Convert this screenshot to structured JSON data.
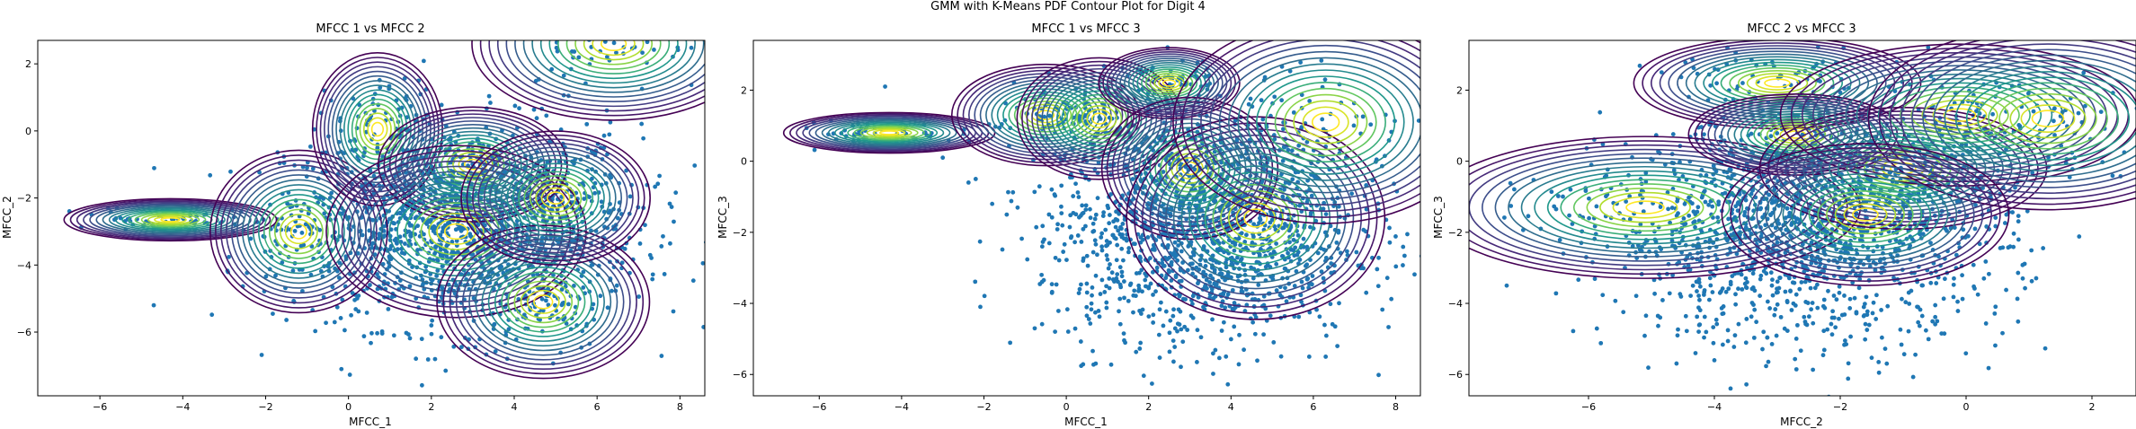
{
  "figure": {
    "suptitle": "GMM with K-Means PDF Contour Plot for Digit 4"
  },
  "chart_data": [
    {
      "type": "scatter",
      "title": "MFCC 1 vs MFCC 2",
      "xlabel": "MFCC_1",
      "ylabel": "MFCC_2",
      "xlim": [
        -7.5,
        8.6
      ],
      "ylim": [
        -7.9,
        2.7
      ],
      "xticks": [
        -6,
        -4,
        -2,
        0,
        2,
        4,
        6,
        8
      ],
      "yticks": [
        -6,
        -4,
        -2,
        0,
        2
      ],
      "grid": false,
      "points_color": "#1f77b4",
      "cloud": {
        "x_range": [
          -2.0,
          7.5
        ],
        "y_range": [
          -6.2,
          0.5
        ]
      },
      "outliers": [
        [
          -4.7,
          -5.2
        ],
        [
          -5.8,
          -2.3
        ],
        [
          -5.5,
          -2.6
        ],
        [
          -6.2,
          -2.5
        ],
        [
          -3.8,
          -2.7
        ],
        [
          1.1,
          -6.1
        ],
        [
          2.0,
          -5.8
        ]
      ],
      "components": [
        {
          "mean": [
            -4.3,
            -2.65
          ],
          "sx": 0.9,
          "sy": 0.22
        },
        {
          "mean": [
            -1.2,
            -3.0
          ],
          "sx": 0.75,
          "sy": 0.85
        },
        {
          "mean": [
            0.7,
            0.05
          ],
          "sx": 0.55,
          "sy": 0.8
        },
        {
          "mean": [
            3.0,
            -1.0
          ],
          "sx": 0.8,
          "sy": 0.6
        },
        {
          "mean": [
            2.6,
            -3.0
          ],
          "sx": 1.1,
          "sy": 0.9
        },
        {
          "mean": [
            4.7,
            -5.1
          ],
          "sx": 0.9,
          "sy": 0.8
        },
        {
          "mean": [
            5.0,
            -2.0
          ],
          "sx": 0.8,
          "sy": 0.7
        },
        {
          "mean": [
            6.4,
            2.6
          ],
          "sx": 1.2,
          "sy": 0.8
        }
      ]
    },
    {
      "type": "scatter",
      "title": "MFCC 1 vs MFCC 3",
      "xlabel": "MFCC_1",
      "ylabel": "MFCC_3",
      "xlim": [
        -7.6,
        8.6
      ],
      "ylim": [
        -6.6,
        3.4
      ],
      "xticks": [
        -6,
        -4,
        -2,
        0,
        2,
        4,
        6,
        8
      ],
      "yticks": [
        -6,
        -4,
        -2,
        0,
        2
      ],
      "grid": false,
      "points_color": "#1f77b4",
      "cloud": {
        "x_range": [
          -1.0,
          7.5
        ],
        "y_range": [
          -5.5,
          1.5
        ]
      },
      "outliers": [
        [
          -4.4,
          2.1
        ],
        [
          -3.0,
          0.1
        ],
        [
          -2.2,
          -0.5
        ],
        [
          -1.8,
          -1.2
        ],
        [
          -0.6,
          -3.2
        ],
        [
          6.3,
          -5.5
        ],
        [
          5.9,
          -5.5
        ]
      ],
      "components": [
        {
          "mean": [
            -4.3,
            0.8
          ],
          "sx": 0.9,
          "sy": 0.2
        },
        {
          "mean": [
            -0.5,
            1.3
          ],
          "sx": 0.8,
          "sy": 0.5
        },
        {
          "mean": [
            0.8,
            1.2
          ],
          "sx": 0.7,
          "sy": 0.6
        },
        {
          "mean": [
            2.5,
            2.2
          ],
          "sx": 0.6,
          "sy": 0.35
        },
        {
          "mean": [
            3.0,
            -0.2
          ],
          "sx": 0.75,
          "sy": 0.7
        },
        {
          "mean": [
            4.6,
            -1.6
          ],
          "sx": 1.1,
          "sy": 1.0
        },
        {
          "mean": [
            6.3,
            1.1
          ],
          "sx": 1.3,
          "sy": 1.0
        }
      ]
    },
    {
      "type": "scatter",
      "title": "MFCC 2 vs MFCC 3",
      "xlabel": "MFCC_2",
      "ylabel": "MFCC_3",
      "xlim": [
        -7.9,
        2.7
      ],
      "ylim": [
        -6.6,
        3.4
      ],
      "xticks": [
        -6,
        -4,
        -2,
        0,
        2
      ],
      "yticks": [
        -6,
        -4,
        -2,
        0,
        2
      ],
      "grid": false,
      "points_color": "#1f77b4",
      "cloud": {
        "x_range": [
          -6.0,
          1.0
        ],
        "y_range": [
          -5.5,
          1.5
        ]
      },
      "outliers": [
        [
          -7.3,
          -3.5
        ],
        [
          -6.4,
          -2.6
        ],
        [
          -5.7,
          -2.4
        ],
        [
          -4.3,
          -5.4
        ],
        [
          -4.0,
          -5.6
        ],
        [
          0.9,
          -3.3
        ],
        [
          0.7,
          -2.4
        ]
      ],
      "components": [
        {
          "mean": [
            -5.1,
            -1.3
          ],
          "sx": 1.2,
          "sy": 0.7
        },
        {
          "mean": [
            -3.0,
            2.2
          ],
          "sx": 0.8,
          "sy": 0.45
        },
        {
          "mean": [
            -2.7,
            0.75
          ],
          "sx": 0.6,
          "sy": 0.4
        },
        {
          "mean": [
            -1.0,
            -0.2
          ],
          "sx": 0.8,
          "sy": 0.6
        },
        {
          "mean": [
            -0.1,
            1.3
          ],
          "sx": 1.0,
          "sy": 0.7
        },
        {
          "mean": [
            1.3,
            1.2
          ],
          "sx": 1.0,
          "sy": 0.9
        },
        {
          "mean": [
            -1.6,
            -1.5
          ],
          "sx": 0.8,
          "sy": 0.7
        }
      ]
    }
  ]
}
